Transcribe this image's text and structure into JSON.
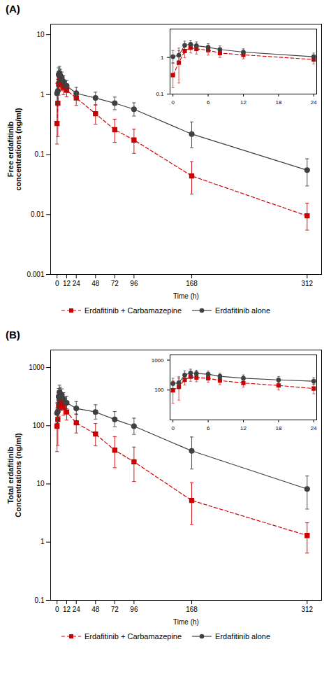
{
  "chart_data": [
    {
      "type": "line",
      "title": "(A)",
      "xlabel": "Time (h)",
      "ylabel": "Free erdafitinib\nconcentrations (ng/ml)",
      "log": "y",
      "grid": false,
      "legend": "bottom",
      "xlim": [
        -8,
        330
      ],
      "ylim": [
        0.001,
        15
      ],
      "xticks": [
        0,
        12,
        24,
        48,
        72,
        96,
        168,
        312
      ],
      "yticks": [
        0.001,
        0.01,
        0.1,
        1,
        10
      ],
      "x": [
        0,
        1,
        2,
        3,
        4,
        6,
        8,
        12,
        24,
        48,
        72,
        96,
        168,
        312
      ],
      "series": [
        {
          "name": "Erdafitinib + Carbamazepine",
          "color": "#cc0000",
          "marker": "square",
          "line_style": "dashed",
          "values": [
            0.33,
            0.72,
            1.5,
            1.85,
            1.72,
            1.58,
            1.32,
            1.18,
            0.88,
            0.48,
            0.26,
            0.175,
            0.044,
            0.0095
          ],
          "yerr_low": [
            0.18,
            0.52,
            0.52,
            0.52,
            0.48,
            0.42,
            0.32,
            0.26,
            0.22,
            0.16,
            0.1,
            0.07,
            0.022,
            0.004
          ],
          "yerr_high": [
            0.38,
            0.82,
            0.68,
            0.62,
            0.58,
            0.52,
            0.42,
            0.32,
            0.27,
            0.19,
            0.13,
            0.09,
            0.032,
            0.006
          ]
        },
        {
          "name": "Erdafitinib alone",
          "color": "#404040",
          "marker": "circle",
          "line_style": "solid",
          "values": [
            1.05,
            1.15,
            2.15,
            2.3,
            2.1,
            1.9,
            1.65,
            1.4,
            1.05,
            0.88,
            0.72,
            0.57,
            0.22,
            0.055
          ],
          "yerr_low": [
            0.35,
            0.4,
            0.5,
            0.55,
            0.45,
            0.38,
            0.32,
            0.27,
            0.22,
            0.2,
            0.16,
            0.13,
            0.09,
            0.025
          ],
          "yerr_high": [
            0.5,
            0.65,
            0.65,
            0.65,
            0.55,
            0.48,
            0.42,
            0.32,
            0.27,
            0.22,
            0.19,
            0.16,
            0.13,
            0.03
          ]
        }
      ]
    },
    {
      "type": "line",
      "log": "y",
      "grid": false,
      "legend": false,
      "xlim": [
        -0.5,
        24.5
      ],
      "ylim": [
        0.1,
        6
      ],
      "xticks": [
        0,
        6,
        12,
        18,
        24
      ],
      "yticks": [
        0.1,
        1
      ],
      "x": [
        0,
        1,
        2,
        3,
        4,
        6,
        8,
        12,
        24
      ],
      "series": [
        {
          "name": "Erdafitinib + Carbamazepine",
          "color": "#cc0000",
          "marker": "square",
          "line_style": "dashed",
          "values": [
            0.33,
            0.72,
            1.5,
            1.85,
            1.72,
            1.58,
            1.32,
            1.18,
            0.88
          ],
          "yerr_low": [
            0.18,
            0.52,
            0.52,
            0.52,
            0.48,
            0.42,
            0.32,
            0.26,
            0.22
          ],
          "yerr_high": [
            0.38,
            0.82,
            0.68,
            0.62,
            0.58,
            0.52,
            0.42,
            0.32,
            0.27
          ]
        },
        {
          "name": "Erdafitinib alone",
          "color": "#404040",
          "marker": "circle",
          "line_style": "solid",
          "values": [
            1.05,
            1.15,
            2.15,
            2.3,
            2.1,
            1.9,
            1.65,
            1.4,
            1.05
          ],
          "yerr_low": [
            0.35,
            0.4,
            0.5,
            0.55,
            0.45,
            0.38,
            0.32,
            0.27,
            0.22
          ],
          "yerr_high": [
            0.5,
            0.65,
            0.65,
            0.65,
            0.55,
            0.48,
            0.42,
            0.32,
            0.27
          ]
        }
      ]
    },
    {
      "type": "line",
      "title": "(B)",
      "xlabel": "Time (h)",
      "ylabel": "Total erdafitinib\nConcentrations (ng/ml)",
      "log": "y",
      "grid": false,
      "legend": "bottom",
      "xlim": [
        -8,
        330
      ],
      "ylim": [
        0.1,
        2000
      ],
      "xticks": [
        0,
        12,
        24,
        48,
        72,
        96,
        168,
        312
      ],
      "yticks": [
        0.1,
        1,
        10,
        100,
        1000
      ],
      "x": [
        0,
        1,
        2,
        3,
        4,
        6,
        8,
        12,
        24,
        48,
        72,
        96,
        168,
        312
      ],
      "series": [
        {
          "name": "Erdafitinib + Carbamazepine",
          "color": "#cc0000",
          "marker": "square",
          "line_style": "dashed",
          "values": [
            98,
            128,
            218,
            278,
            262,
            248,
            208,
            172,
            112,
            72,
            38,
            24,
            5.2,
            1.3
          ],
          "yerr_low": [
            62,
            82,
            72,
            82,
            72,
            67,
            57,
            47,
            37,
            27,
            19,
            13,
            3.2,
            0.65
          ],
          "yerr_high": [
            102,
            122,
            92,
            102,
            92,
            82,
            72,
            62,
            47,
            37,
            27,
            19,
            5.2,
            0.85
          ]
        },
        {
          "name": "Erdafitinib alone",
          "color": "#404040",
          "marker": "circle",
          "line_style": "solid",
          "values": [
            165,
            175,
            315,
            375,
            358,
            338,
            288,
            248,
            198,
            172,
            128,
            98,
            37,
            8.2
          ],
          "yerr_low": [
            55,
            65,
            82,
            92,
            82,
            72,
            62,
            52,
            42,
            42,
            32,
            27,
            19,
            4.5
          ],
          "yerr_high": [
            82,
            102,
            122,
            122,
            102,
            92,
            82,
            72,
            62,
            57,
            47,
            37,
            27,
            5.5
          ]
        }
      ]
    },
    {
      "type": "line",
      "log": "y",
      "grid": false,
      "legend": false,
      "xlim": [
        -0.5,
        24.5
      ],
      "ylim": [
        10,
        1500
      ],
      "xticks": [
        0,
        6,
        12,
        18,
        24
      ],
      "yticks": [
        100,
        1000
      ],
      "x": [
        0,
        1,
        2,
        3,
        4,
        6,
        8,
        12,
        18,
        24
      ],
      "series": [
        {
          "name": "Erdafitinib + Carbamazepine",
          "color": "#cc0000",
          "marker": "square",
          "line_style": "dashed",
          "values": [
            98,
            128,
            218,
            278,
            262,
            248,
            208,
            172,
            142,
            112
          ],
          "yerr_low": [
            62,
            82,
            72,
            82,
            72,
            67,
            57,
            47,
            42,
            37
          ],
          "yerr_high": [
            102,
            122,
            92,
            102,
            92,
            82,
            72,
            62,
            57,
            47
          ]
        },
        {
          "name": "Erdafitinib alone",
          "color": "#404040",
          "marker": "circle",
          "line_style": "solid",
          "values": [
            165,
            175,
            315,
            375,
            358,
            338,
            288,
            248,
            218,
            198
          ],
          "yerr_low": [
            55,
            65,
            82,
            92,
            82,
            72,
            62,
            52,
            47,
            42
          ],
          "yerr_high": [
            82,
            102,
            122,
            122,
            102,
            92,
            82,
            72,
            62,
            62
          ]
        }
      ]
    }
  ]
}
